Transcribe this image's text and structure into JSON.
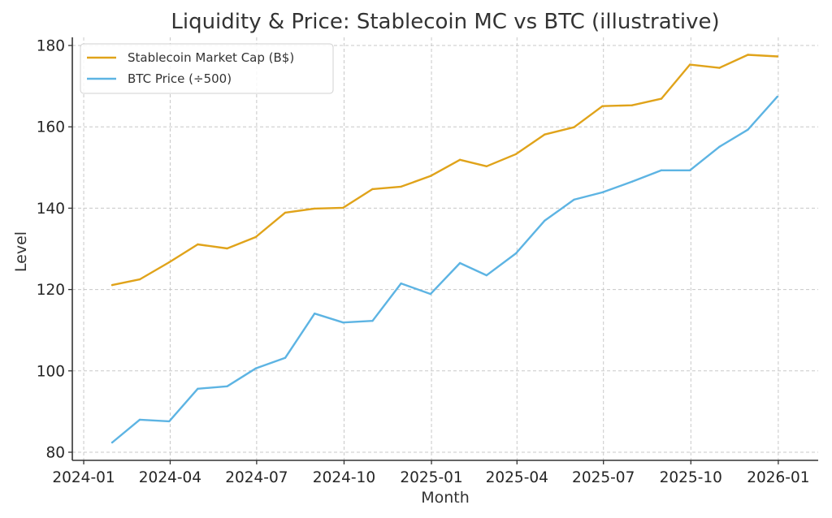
{
  "chart_data": {
    "type": "line",
    "title": "Liquidity & Price: Stablecoin MC vs BTC (illustrative)",
    "xlabel": "Month",
    "ylabel": "Level",
    "grid": true,
    "legend_position": "top-left",
    "ylim": [
      78,
      182
    ],
    "xlim": [
      "2023-12-20",
      "2026-02-12"
    ],
    "yticks": [
      80,
      100,
      120,
      140,
      160,
      180
    ],
    "xticks": [
      "2024-01",
      "2024-04",
      "2024-07",
      "2024-10",
      "2025-01",
      "2025-04",
      "2025-07",
      "2025-10",
      "2026-01"
    ],
    "x": [
      "2024-01-31",
      "2024-02-29",
      "2024-03-31",
      "2024-04-30",
      "2024-05-31",
      "2024-06-30",
      "2024-07-31",
      "2024-08-31",
      "2024-09-30",
      "2024-10-31",
      "2024-11-30",
      "2024-12-31",
      "2025-01-31",
      "2025-02-28",
      "2025-03-31",
      "2025-04-30",
      "2025-05-31",
      "2025-06-30",
      "2025-07-31",
      "2025-08-31",
      "2025-09-30",
      "2025-10-31",
      "2025-11-30",
      "2025-12-31"
    ],
    "series": [
      {
        "name": "Stablecoin Market Cap (B$)",
        "color": "#E0A31A",
        "values": [
          121.1,
          122.5,
          126.7,
          131.1,
          130.1,
          132.9,
          138.9,
          139.9,
          140.1,
          144.7,
          145.3,
          147.9,
          151.9,
          150.3,
          153.3,
          158.1,
          159.9,
          165.1,
          165.3,
          166.9,
          175.3,
          174.5,
          177.7,
          177.3
        ]
      },
      {
        "name": "BTC Price (÷500)",
        "color": "#5DB4E3",
        "values": [
          82.4,
          88.0,
          87.6,
          95.6,
          96.2,
          100.6,
          103.2,
          114.1,
          111.9,
          112.3,
          121.5,
          118.9,
          126.5,
          123.5,
          128.9,
          136.9,
          142.1,
          143.9,
          146.5,
          149.3,
          149.3,
          155.1,
          159.3,
          167.4
        ]
      }
    ]
  }
}
